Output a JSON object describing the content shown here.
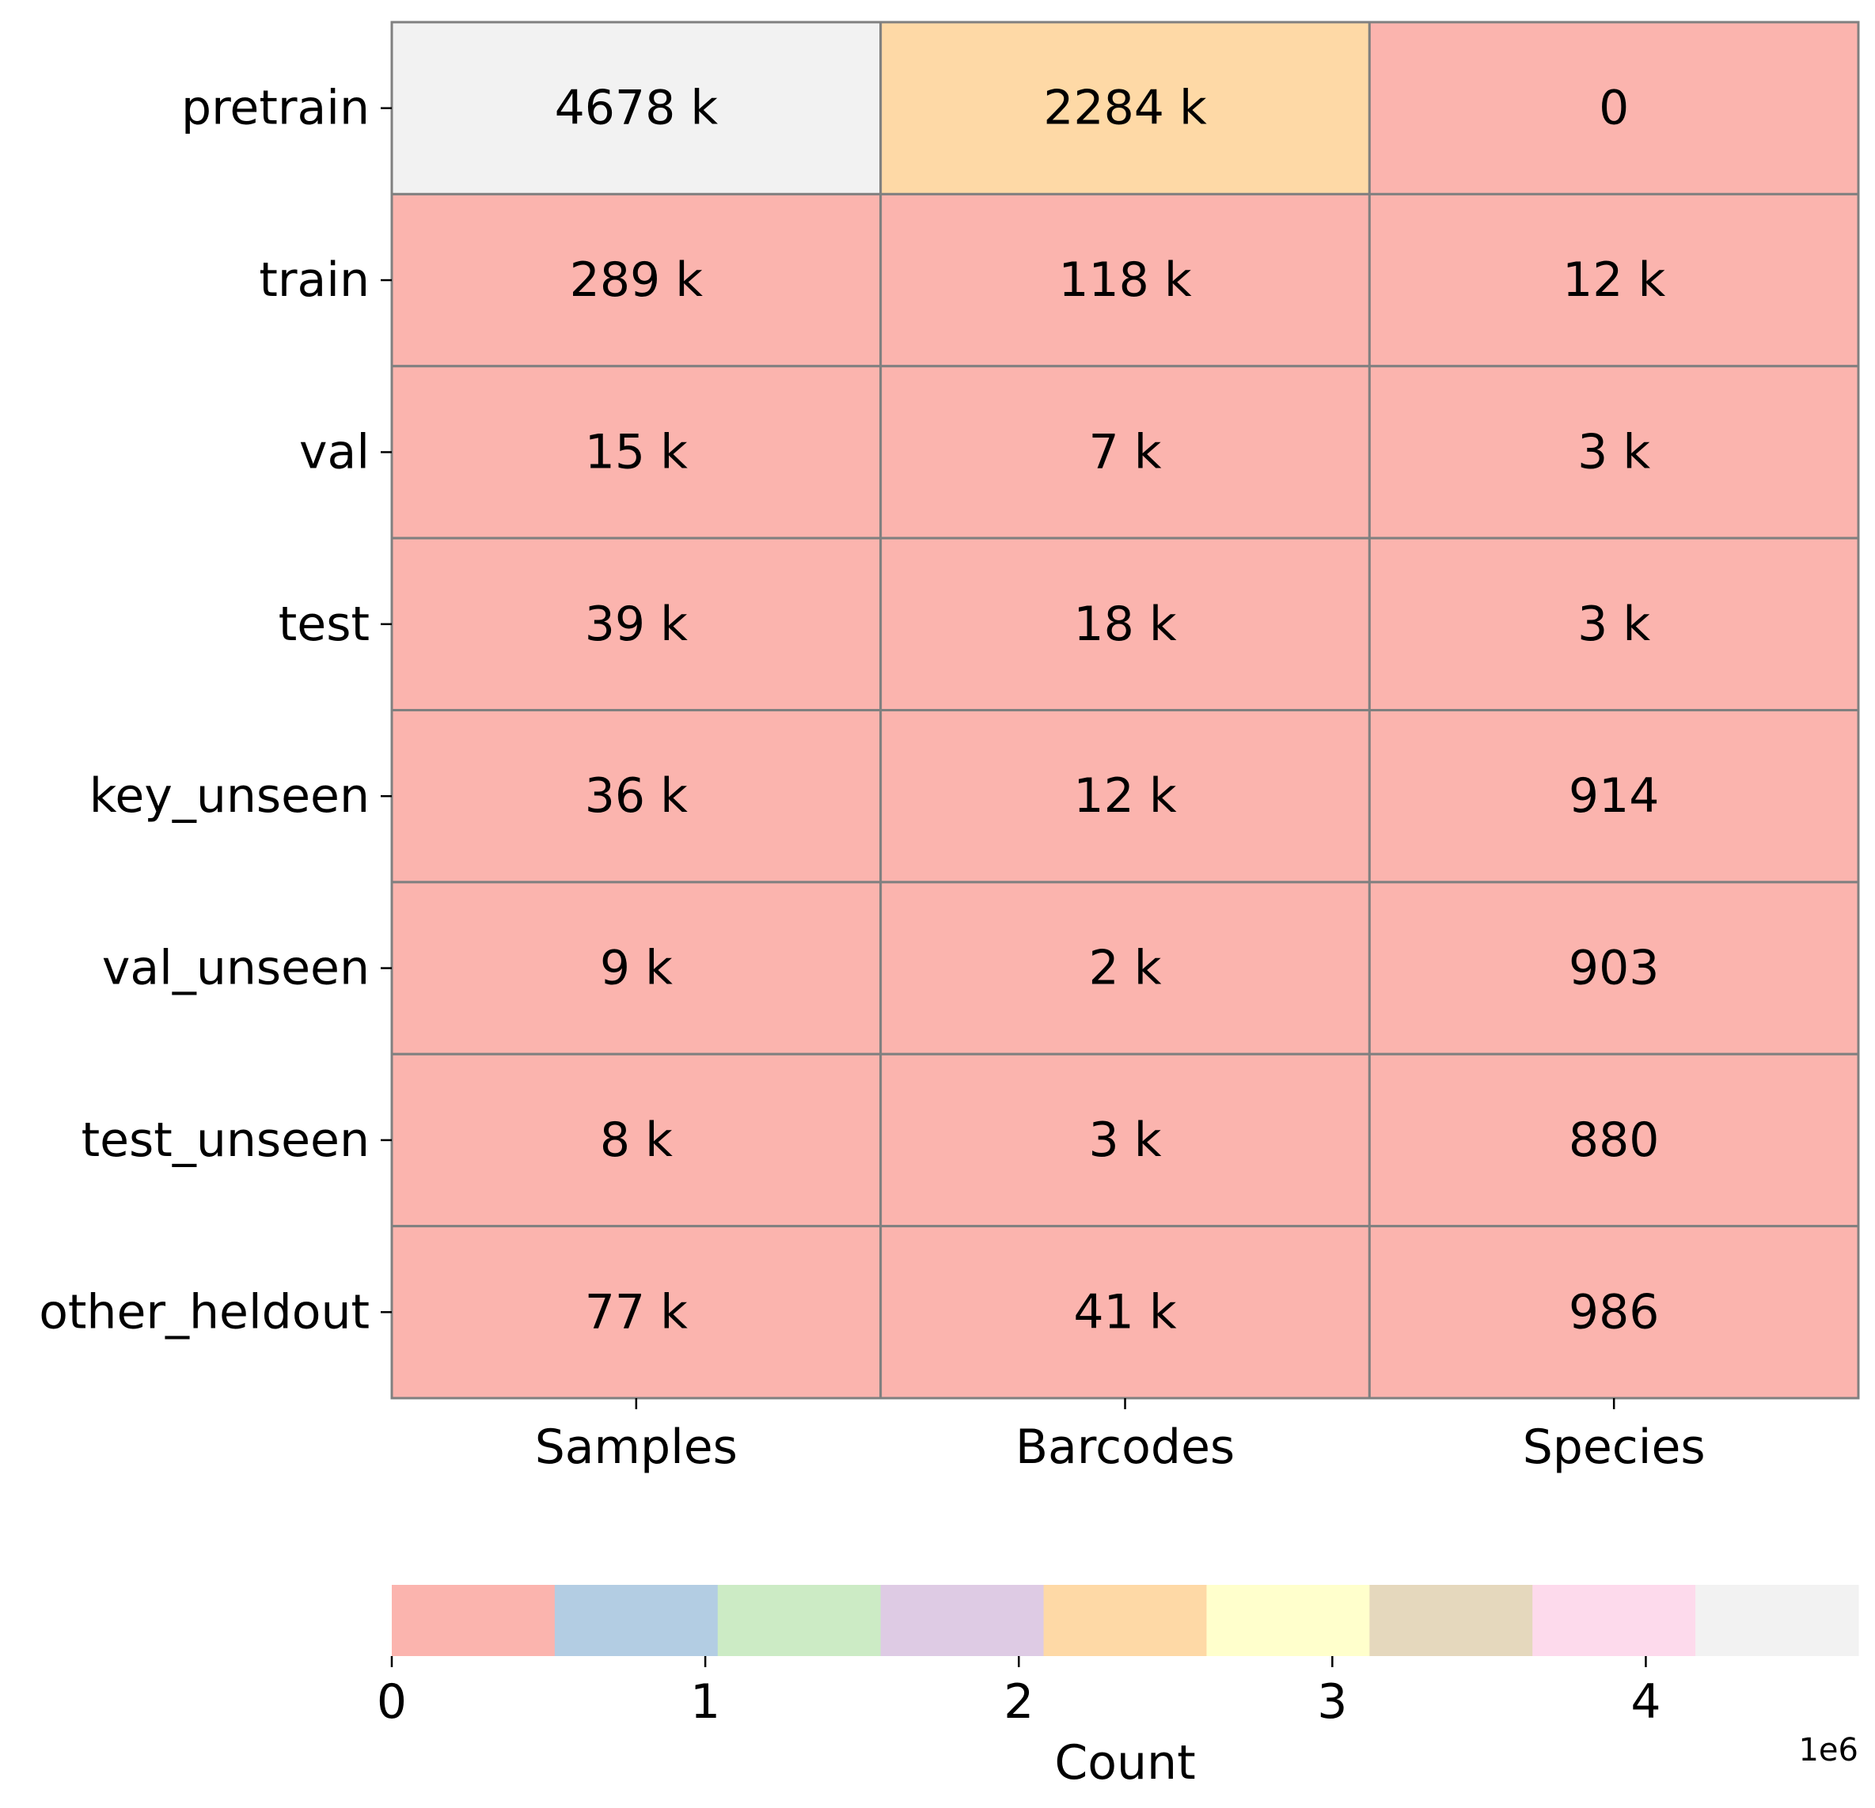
{
  "chart_data": {
    "type": "heatmap",
    "rows": [
      "pretrain",
      "train",
      "val",
      "test",
      "key_unseen",
      "val_unseen",
      "test_unseen",
      "other_heldout"
    ],
    "columns": [
      "Samples",
      "Barcodes",
      "Species"
    ],
    "values": [
      [
        4678000,
        2284000,
        0
      ],
      [
        289000,
        118000,
        12000
      ],
      [
        15000,
        7000,
        3000
      ],
      [
        39000,
        18000,
        3000
      ],
      [
        36000,
        12000,
        914
      ],
      [
        9000,
        2000,
        903
      ],
      [
        8000,
        3000,
        880
      ],
      [
        77000,
        41000,
        986
      ]
    ],
    "cell_labels": [
      [
        "4678 k",
        "2284 k",
        "0"
      ],
      [
        "289 k",
        "118 k",
        "12 k"
      ],
      [
        "15 k",
        "7 k",
        "3 k"
      ],
      [
        "39 k",
        "18 k",
        "3 k"
      ],
      [
        "36 k",
        "12 k",
        "914"
      ],
      [
        "9 k",
        "2 k",
        "903"
      ],
      [
        "8 k",
        "3 k",
        "880"
      ],
      [
        "77 k",
        "41 k",
        "986"
      ]
    ],
    "colorbar": {
      "label": "Count",
      "orientation": "horizontal",
      "position": "bottom",
      "range": [
        0,
        4678000
      ],
      "ticks": [
        0,
        1000000,
        2000000,
        3000000,
        4000000
      ],
      "tick_labels": [
        "0",
        "1",
        "2",
        "3",
        "4"
      ],
      "offset_text": "1e6",
      "colormap": "Pastel1",
      "colors": [
        "#fbb4ae",
        "#b3cde3",
        "#ccebc5",
        "#decbe4",
        "#fed9a6",
        "#ffffcc",
        "#e5d8bd",
        "#fddaec",
        "#f2f2f2"
      ]
    },
    "cell_border_color": "#808080",
    "grid": false
  }
}
